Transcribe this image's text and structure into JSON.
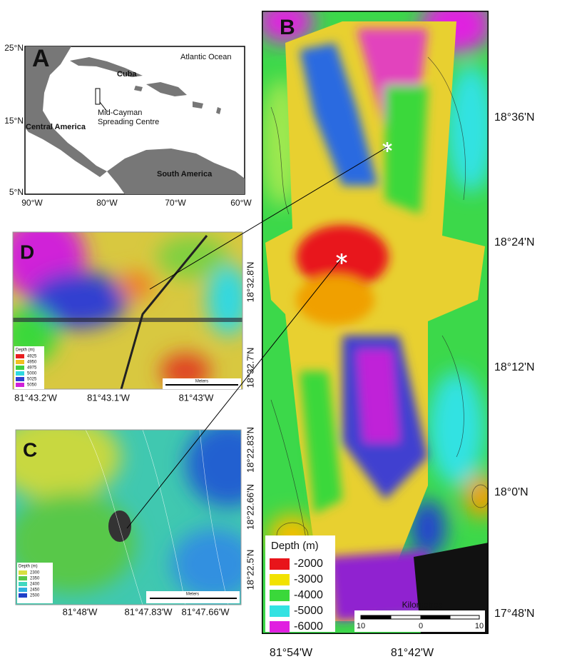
{
  "panel_a": {
    "letter": "A",
    "lat_labels": [
      "25°N",
      "15°N",
      "5°N"
    ],
    "lon_labels": [
      "90°W",
      "80°W",
      "70°W",
      "60°W"
    ],
    "places": [
      "Atlantic Ocean",
      "Cuba",
      "Mid-Cayman",
      "Spreading Centre",
      "Central America",
      "South America"
    ]
  },
  "panel_b": {
    "letter": "B",
    "lat_labels": [
      "18°36'N",
      "18°24'N",
      "18°12'N",
      "18°0'N",
      "17°48'N"
    ],
    "lon_labels": [
      "81°54'W",
      "81°42'W"
    ],
    "legend": {
      "title": "Depth (m)",
      "items": [
        {
          "label": "-2000",
          "color": "#e8141a"
        },
        {
          "label": "-3000",
          "color": "#f2e200"
        },
        {
          "label": "-4000",
          "color": "#3ad83a"
        },
        {
          "label": "-5000",
          "color": "#33e2e2"
        },
        {
          "label": "-6000",
          "color": "#e020e0"
        }
      ]
    },
    "scale": {
      "title": "Kilometres",
      "ticks": [
        "10",
        "0",
        "10"
      ]
    }
  },
  "panel_d": {
    "letter": "D",
    "lat_labels": [
      "18°32.8'N",
      "18°32.7'N"
    ],
    "lon_labels": [
      "81°43.2'W",
      "81°43.1'W",
      "81°43'W"
    ],
    "legend": {
      "title": "Depth (m)",
      "items": [
        {
          "label": "4925",
          "color": "#e82020"
        },
        {
          "label": "4950",
          "color": "#f0c020"
        },
        {
          "label": "4975",
          "color": "#40d040"
        },
        {
          "label": "5000",
          "color": "#30d8e0"
        },
        {
          "label": "5025",
          "color": "#3040d0"
        },
        {
          "label": "5050",
          "color": "#d020d8"
        }
      ]
    },
    "scale": {
      "title": "Meters"
    }
  },
  "panel_c": {
    "letter": "C",
    "lat_labels": [
      "18°22.83'N",
      "18°22.66'N",
      "18°22.5'N"
    ],
    "lon_labels": [
      "81°48'W",
      "81°47.83'W",
      "81°47.66'W"
    ],
    "legend": {
      "title": "Depth (m)",
      "items": [
        {
          "label": "2300",
          "color": "#d8e040"
        },
        {
          "label": "2350",
          "color": "#58c848"
        },
        {
          "label": "2400",
          "color": "#40d8c0"
        },
        {
          "label": "2450",
          "color": "#30b0e0"
        },
        {
          "label": "2500",
          "color": "#2040c8"
        }
      ]
    },
    "scale": {
      "title": "Meters"
    }
  }
}
